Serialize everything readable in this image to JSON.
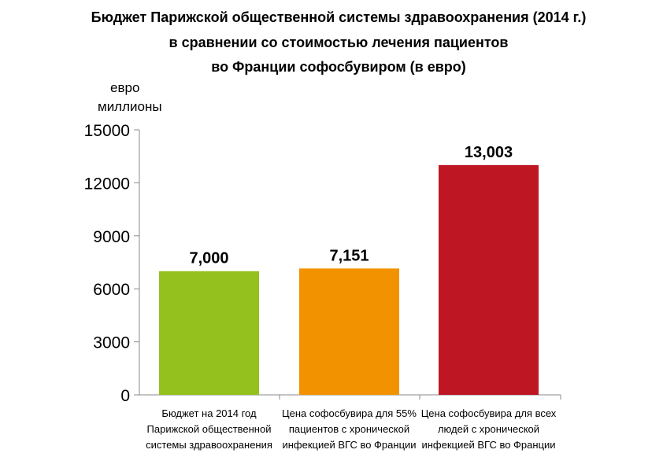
{
  "chart_data": {
    "type": "bar",
    "title_lines": [
      "Бюджет Парижской общественной системы здравоохранения (2014 г.)",
      "в сравнении со стоимостью лечения пациентов",
      "во Франции софосбувиром (в евро)"
    ],
    "ylabel_lines": [
      "евро",
      "миллионы"
    ],
    "ylim": [
      0,
      15000
    ],
    "yticks": [
      0,
      3000,
      6000,
      9000,
      12000,
      15000
    ],
    "categories": [
      [
        "Бюджет на 2014 год",
        "Парижской общественной",
        "системы здравоохранения"
      ],
      [
        "Цена софосбувира для 55%",
        "пациентов с хронической",
        "инфекцией ВГС во Франции"
      ],
      [
        "Цена софосбувира для всех",
        "людей с хронической",
        "инфекцией ВГС во Франции"
      ]
    ],
    "values": [
      7000,
      7151,
      13003
    ],
    "data_labels": [
      "7,000",
      "7,151",
      "13,003"
    ],
    "colors": [
      "#95c11f",
      "#f39200",
      "#be1622"
    ],
    "grid": false,
    "legend": "none"
  }
}
